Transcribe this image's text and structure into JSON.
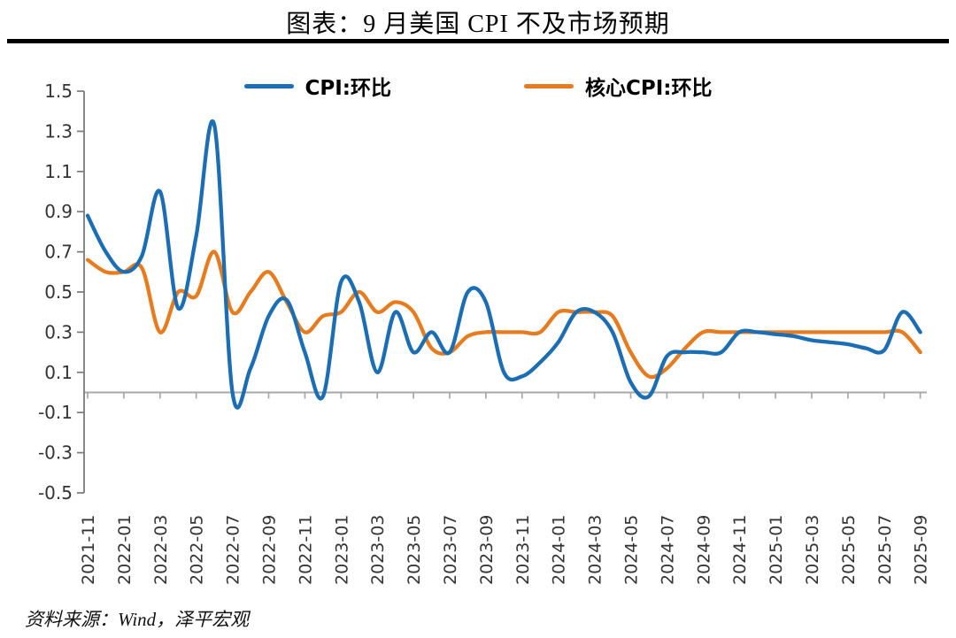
{
  "page": {
    "title": "图表：9 月美国 CPI 不及市场预期",
    "source_note": "资料来源：Wind，泽平宏观"
  },
  "legend": [
    {
      "label": "CPI:环比",
      "color": "#1c6eb4"
    },
    {
      "label": "核心CPI:环比",
      "color": "#e67c1f"
    }
  ],
  "axis_colors": {
    "y_axis": "#7a7a7a",
    "zero_line": "#a8a8a8",
    "tick_label": "#333333"
  },
  "chart_data": {
    "type": "line",
    "title": "9 月美国 CPI 不及市场预期",
    "smooth": true,
    "grid": false,
    "legend_position": "top",
    "ylim": [
      -0.5,
      1.5
    ],
    "ytick_labels": [
      "1.5",
      "1.3",
      "1.1",
      "0.9",
      "0.7",
      "0.5",
      "0.3",
      "0.1",
      "-0.1",
      "-0.3",
      "-0.5"
    ],
    "xtick_labels": [
      "2021-11",
      "2022-01",
      "2022-03",
      "2022-05",
      "2022-07",
      "2022-09",
      "2022-11",
      "2023-01",
      "2023-03",
      "2023-05",
      "2023-07",
      "2023-09",
      "2023-11",
      "2024-01",
      "2024-03",
      "2024-05",
      "2024-07",
      "2024-09",
      "2024-11",
      "2025-01",
      "2025-03",
      "2025-05",
      "2025-07",
      "2025-09"
    ],
    "x": [
      "2021-11",
      "2021-12",
      "2022-01",
      "2022-02",
      "2022-03",
      "2022-04",
      "2022-05",
      "2022-06",
      "2022-07",
      "2022-08",
      "2022-09",
      "2022-10",
      "2022-11",
      "2022-12",
      "2023-01",
      "2023-02",
      "2023-03",
      "2023-04",
      "2023-05",
      "2023-06",
      "2023-07",
      "2023-08",
      "2023-09",
      "2023-10",
      "2023-11",
      "2023-12",
      "2024-01",
      "2024-02",
      "2024-03",
      "2024-04",
      "2024-05",
      "2024-06",
      "2024-07",
      "2024-08",
      "2024-09",
      "2024-10",
      "2024-11",
      "2024-12",
      "2025-01",
      "2025-02",
      "2025-03",
      "2025-04",
      "2025-05",
      "2025-06",
      "2025-07",
      "2025-08",
      "2025-09"
    ],
    "series": [
      {
        "name": "CPI:环比",
        "color": "#1c6eb4",
        "values": [
          0.88,
          0.7,
          0.6,
          0.68,
          1.0,
          0.42,
          0.78,
          1.33,
          0.0,
          0.12,
          0.38,
          0.46,
          0.2,
          -0.02,
          0.55,
          0.45,
          0.1,
          0.4,
          0.2,
          0.3,
          0.2,
          0.5,
          0.45,
          0.1,
          0.08,
          0.15,
          0.25,
          0.4,
          0.4,
          0.3,
          0.05,
          -0.02,
          0.18,
          0.2,
          0.2,
          0.2,
          0.3,
          0.3,
          0.29,
          0.28,
          0.26,
          0.25,
          0.24,
          0.22,
          0.21,
          0.4,
          0.3
        ]
      },
      {
        "name": "核心CPI:环比",
        "color": "#e67c1f",
        "values": [
          0.66,
          0.6,
          0.6,
          0.62,
          0.3,
          0.5,
          0.48,
          0.7,
          0.4,
          0.5,
          0.6,
          0.45,
          0.3,
          0.38,
          0.4,
          0.5,
          0.4,
          0.45,
          0.4,
          0.22,
          0.2,
          0.28,
          0.3,
          0.3,
          0.3,
          0.3,
          0.4,
          0.4,
          0.4,
          0.38,
          0.2,
          0.08,
          0.12,
          0.22,
          0.3,
          0.3,
          0.3,
          0.3,
          0.3,
          0.3,
          0.3,
          0.3,
          0.3,
          0.3,
          0.3,
          0.3,
          0.2
        ]
      }
    ]
  }
}
